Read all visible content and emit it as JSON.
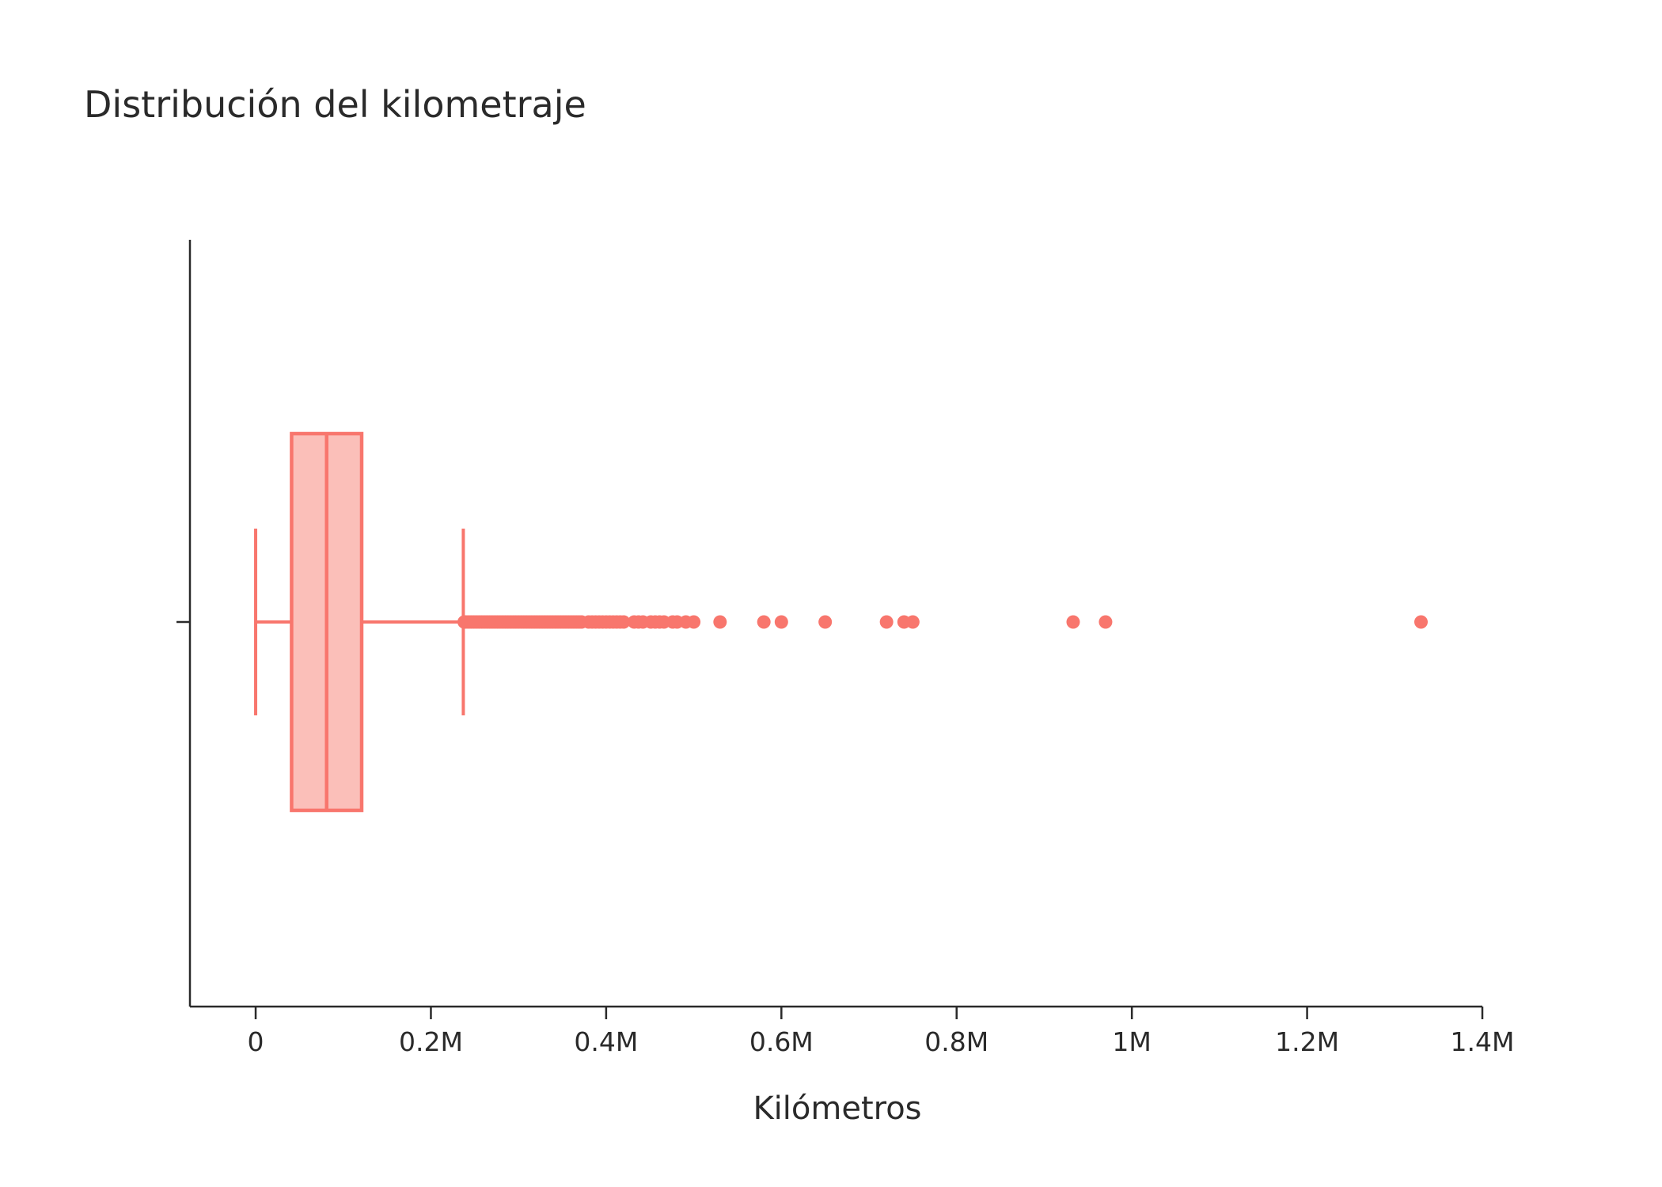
{
  "chart_data": {
    "type": "box",
    "orientation": "horizontal",
    "title": "Distribución del kilometraje",
    "xlabel": "Kilómetros",
    "ylabel": "",
    "xlim": [
      -75000,
      1400000
    ],
    "x_ticks": [
      {
        "value": 0,
        "label": "0"
      },
      {
        "value": 200000,
        "label": "0.2M"
      },
      {
        "value": 400000,
        "label": "0.4M"
      },
      {
        "value": 600000,
        "label": "0.6M"
      },
      {
        "value": 800000,
        "label": "0.8M"
      },
      {
        "value": 1000000,
        "label": "1M"
      },
      {
        "value": 1200000,
        "label": "1.2M"
      },
      {
        "value": 1400000,
        "label": "1.4M"
      }
    ],
    "grid": false,
    "color": "#f8766d",
    "box_fill": "#fbbfb9",
    "box": {
      "min": 0,
      "q1": 41000,
      "median": 81000,
      "q3": 121000,
      "upper_fence": 237000
    },
    "outliers": [
      238000,
      240000,
      243000,
      246000,
      249000,
      252000,
      255000,
      258000,
      261000,
      264000,
      267000,
      270000,
      273000,
      276000,
      279000,
      282000,
      285000,
      288000,
      291000,
      294000,
      297000,
      300000,
      303000,
      306000,
      309000,
      312000,
      315000,
      318000,
      321000,
      324000,
      327000,
      330000,
      333000,
      336000,
      339000,
      342000,
      345000,
      348000,
      351000,
      354000,
      357000,
      360000,
      363000,
      366000,
      369000,
      372000,
      380000,
      384000,
      388000,
      392000,
      396000,
      400000,
      404000,
      408000,
      412000,
      416000,
      420000,
      432000,
      437000,
      442000,
      451000,
      456000,
      461000,
      466000,
      476000,
      481000,
      491000,
      500000,
      530000,
      580000,
      600000,
      650000,
      720000,
      740000,
      750000,
      933000,
      970000,
      1330000
    ]
  }
}
